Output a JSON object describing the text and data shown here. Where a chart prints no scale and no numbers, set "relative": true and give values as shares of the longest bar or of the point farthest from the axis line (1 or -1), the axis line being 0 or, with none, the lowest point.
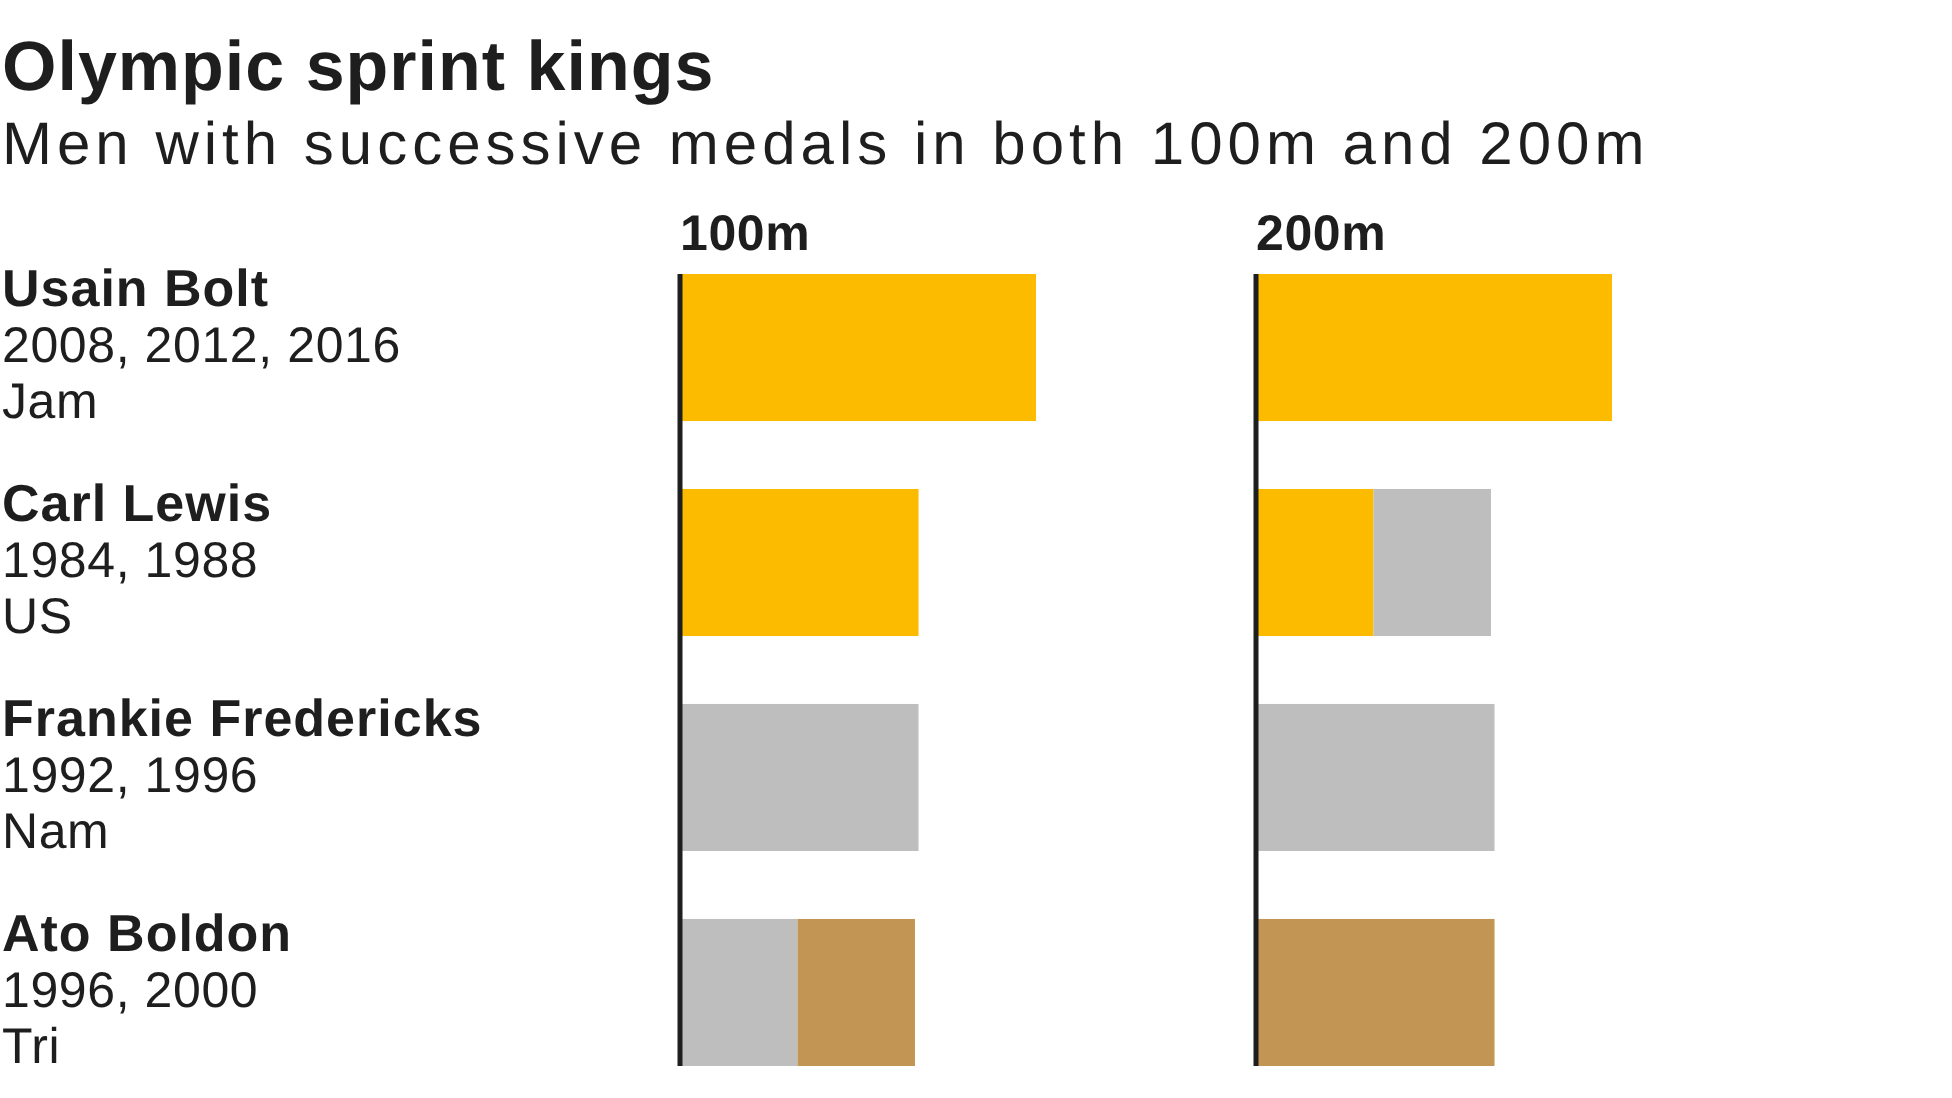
{
  "chart_data": [
    {
      "type": "other",
      "title": "Olympic sprint kings",
      "subtitle": "Men with successive medals in both 100m and 200m"
    },
    {
      "type": "bar",
      "title": "100m",
      "orientation": "horizontal",
      "stacked": true,
      "relative": true,
      "categories": [
        "Usain Bolt\n2008, 2012, 2016\nJam",
        "Carl Lewis\n1984, 1988\nUS",
        "Frankie Fredericks\n1992, 1996\nNam",
        "Ato Boldon\n1996, 2000\nTri"
      ],
      "series": [
        {
          "color": "#fdbb00",
          "values": [
            1,
            0.67,
            null,
            null
          ]
        },
        {
          "color": "#bebebe",
          "values": [
            null,
            null,
            0.67,
            0.33
          ]
        },
        {
          "color": "#c39554",
          "values": [
            null,
            null,
            null,
            0.33
          ]
        }
      ]
    },
    {
      "type": "bar",
      "title": "200m",
      "orientation": "horizontal",
      "stacked": true,
      "relative": true,
      "categories": [
        null,
        null,
        null,
        null
      ],
      "series": [
        {
          "color": "#fdbb00",
          "values": [
            1,
            0.33,
            null,
            null
          ]
        },
        {
          "color": "#bebebe",
          "values": [
            null,
            0.33,
            0.67,
            null
          ]
        },
        {
          "color": "#c39554",
          "values": [
            null,
            null,
            null,
            0.67
          ]
        }
      ]
    }
  ]
}
